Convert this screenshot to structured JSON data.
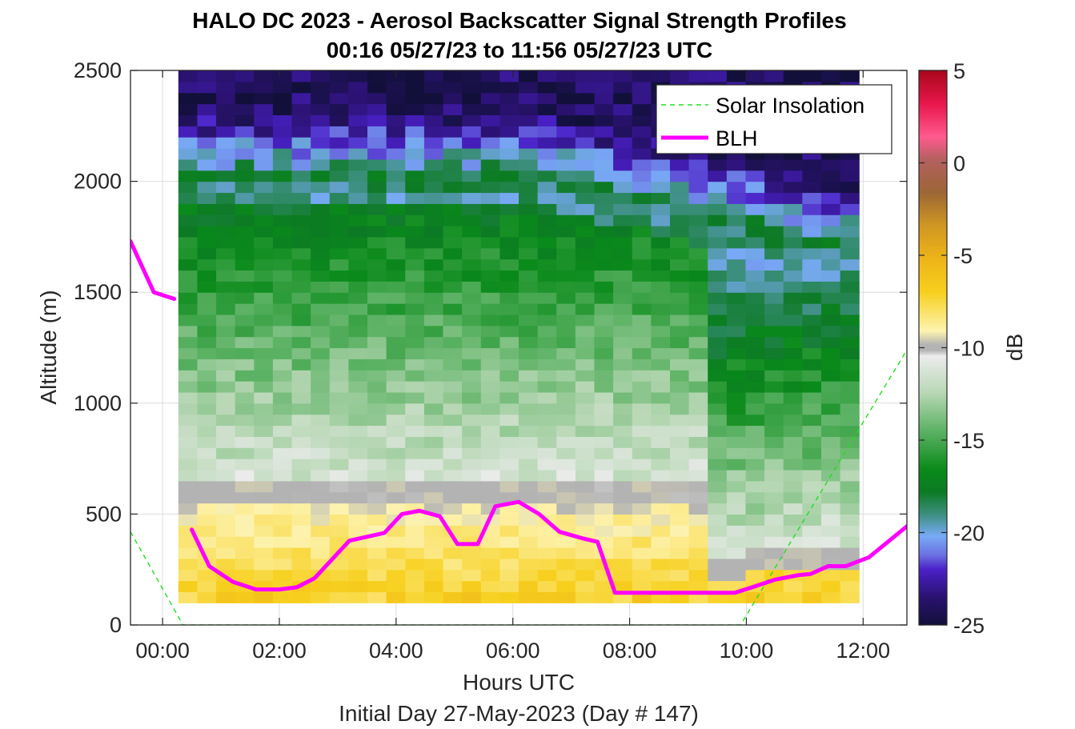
{
  "chart_data": {
    "type": "heatmap",
    "title": "HALO DC 2023 - Aerosol Backscatter Signal Strength Profiles",
    "subtitle": "00:16 05/27/23 to 11:56 05/27/23  UTC",
    "xlabel": "Hours UTC",
    "footer": "Initial Day 27-May-2023 (Day # 147)",
    "ylabel": "Altitude (m)",
    "colorbar_label": "dB",
    "xlim": [
      -0.55,
      12.75
    ],
    "ylim": [
      0,
      2500
    ],
    "x_ticks": [
      0,
      2,
      4,
      6,
      8,
      10,
      12
    ],
    "x_tick_labels": [
      "00:00",
      "02:00",
      "04:00",
      "06:00",
      "08:00",
      "10:00",
      "12:00"
    ],
    "y_ticks": [
      0,
      500,
      1000,
      1500,
      2000,
      2500
    ],
    "y_tick_labels": [
      "0",
      "500",
      "1000",
      "1500",
      "2000",
      "2500"
    ],
    "clim": [
      -25,
      5
    ],
    "c_ticks": [
      5,
      0,
      -5,
      -10,
      -15,
      -20,
      -25
    ],
    "c_tick_labels": [
      "5",
      "0",
      "-5",
      "-10",
      "-15",
      "-20",
      "-25"
    ],
    "grid": true,
    "legend_position": "top-right",
    "legend": [
      {
        "name": "Solar Insolation",
        "style": "dashed",
        "color": "#22dd22"
      },
      {
        "name": "BLH",
        "style": "solid",
        "color": "#ff00ff"
      }
    ],
    "heatmap_x_range": [
      0.27,
      11.93
    ],
    "heatmap_y_range": [
      100,
      2500
    ],
    "series": [
      {
        "name": "BLH",
        "segments": [
          [
            [
              -0.55,
              1730
            ],
            [
              -0.15,
              1500
            ],
            [
              0.2,
              1470
            ]
          ],
          [
            [
              0.5,
              430
            ],
            [
              0.8,
              265
            ],
            [
              1.2,
              195
            ],
            [
              1.6,
              160
            ],
            [
              2.0,
              160
            ],
            [
              2.3,
              170
            ],
            [
              2.6,
              210
            ],
            [
              3.2,
              380
            ],
            [
              3.8,
              415
            ],
            [
              4.1,
              500
            ],
            [
              4.4,
              515
            ],
            [
              4.75,
              490
            ],
            [
              5.05,
              365
            ],
            [
              5.4,
              365
            ],
            [
              5.7,
              535
            ],
            [
              6.1,
              555
            ],
            [
              6.45,
              500
            ],
            [
              6.8,
              420
            ],
            [
              7.2,
              390
            ],
            [
              7.45,
              375
            ],
            [
              7.75,
              145
            ],
            [
              8.5,
              145
            ],
            [
              9.25,
              145
            ],
            [
              9.8,
              145
            ],
            [
              10.1,
              170
            ],
            [
              10.5,
              205
            ],
            [
              10.9,
              225
            ],
            [
              11.1,
              230
            ],
            [
              11.4,
              265
            ],
            [
              11.7,
              265
            ],
            [
              12.1,
              305
            ],
            [
              12.75,
              445
            ]
          ]
        ]
      },
      {
        "name": "Solar Insolation",
        "points": [
          [
            -0.55,
            420
          ],
          [
            0.35,
            0
          ],
          [
            9.9,
            0
          ],
          [
            12.75,
            1240
          ]
        ]
      }
    ]
  }
}
